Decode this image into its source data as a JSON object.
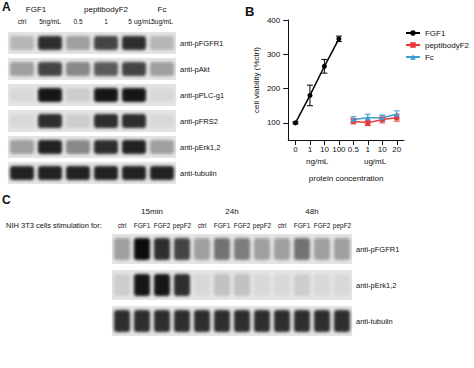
{
  "chart_data": {
    "type": "line",
    "title": "B",
    "x_label": "protein concentration",
    "y_label": "cell viability (%ctrl)",
    "categories": [
      "0",
      "1",
      "10",
      "100",
      "0.5",
      "1",
      "10",
      "20"
    ],
    "x_groups": [
      {
        "label": "ng/mL",
        "from": 0,
        "to": 3
      },
      {
        "label": "ug/mL",
        "from": 4,
        "to": 7
      }
    ],
    "ylim": [
      50,
      400
    ],
    "yticks": [
      100,
      200,
      300,
      400
    ],
    "legend": "top-right",
    "series": [
      {
        "name": "FGF1",
        "color": "#000000",
        "marker": "circle",
        "values": [
          100,
          180,
          265,
          345,
          null,
          null,
          null,
          null
        ],
        "errors": [
          3,
          30,
          20,
          8,
          null,
          null,
          null,
          null
        ]
      },
      {
        "name": "peptibodyF2",
        "color": "#e8393a",
        "marker": "square",
        "values": [
          null,
          null,
          null,
          null,
          105,
          100,
          110,
          115
        ],
        "errors": [
          null,
          null,
          null,
          null,
          8,
          8,
          10,
          10
        ]
      },
      {
        "name": "Fc",
        "color": "#3f9bd8",
        "marker": "triangle",
        "values": [
          null,
          null,
          null,
          null,
          110,
          115,
          115,
          125
        ],
        "errors": [
          null,
          null,
          null,
          null,
          8,
          10,
          8,
          10
        ]
      }
    ]
  },
  "panel_a": {
    "label": "A",
    "groups": [
      {
        "label": "FGF1",
        "from": 0,
        "to": 1
      },
      {
        "label": "peptibodyF2",
        "from": 2,
        "to": 4
      },
      {
        "label": "Fc",
        "from": 5,
        "to": 5
      }
    ],
    "lane_labels": [
      "ctrl",
      "5ng/mL",
      "0.5",
      "1",
      "5",
      "5ug/mL"
    ],
    "unit_label": "ug/mL",
    "unit_after_lane": 4,
    "rows": [
      {
        "label": "anti-pFGFR1",
        "intensity": [
          0.2,
          0.8,
          0.3,
          0.7,
          0.8,
          0.2
        ]
      },
      {
        "label": "anti-pAkt",
        "intensity": [
          0.3,
          0.7,
          0.4,
          0.6,
          0.7,
          0.3
        ]
      },
      {
        "label": "anti-pPLC-g1",
        "intensity": [
          0.05,
          0.9,
          0.1,
          0.9,
          0.9,
          0.05
        ]
      },
      {
        "label": "anti-pFRS2",
        "intensity": [
          0.05,
          0.8,
          0.1,
          0.8,
          0.8,
          0.05
        ]
      },
      {
        "label": "anti-pErk1,2",
        "intensity": [
          0.3,
          0.85,
          0.4,
          0.8,
          0.85,
          0.3
        ]
      },
      {
        "label": "anti-tubulin",
        "intensity": [
          0.85,
          0.85,
          0.85,
          0.85,
          0.85,
          0.85
        ]
      }
    ]
  },
  "panel_c": {
    "label": "C",
    "caption": "NIH 3T3 cells stimulation for:",
    "groups": [
      "15min",
      "24h",
      "48h"
    ],
    "lane_labels": [
      "ctrl",
      "FGF1",
      "FGF2",
      "pepF2"
    ],
    "rows": [
      {
        "label": "anti-pFGFR1",
        "intensity": [
          0.3,
          0.95,
          0.8,
          0.7,
          0.3,
          0.5,
          0.45,
          0.3,
          0.3,
          0.5,
          0.3,
          0.3
        ]
      },
      {
        "label": "anti-pErk1,2",
        "intensity": [
          0.1,
          0.9,
          0.9,
          0.8,
          0.05,
          0.15,
          0.15,
          0.05,
          0.05,
          0.1,
          0.05,
          0.05
        ]
      },
      {
        "label": "anti-tubulin",
        "intensity": [
          0.8,
          0.8,
          0.8,
          0.8,
          0.8,
          0.8,
          0.8,
          0.8,
          0.8,
          0.8,
          0.8,
          0.8
        ]
      }
    ]
  }
}
